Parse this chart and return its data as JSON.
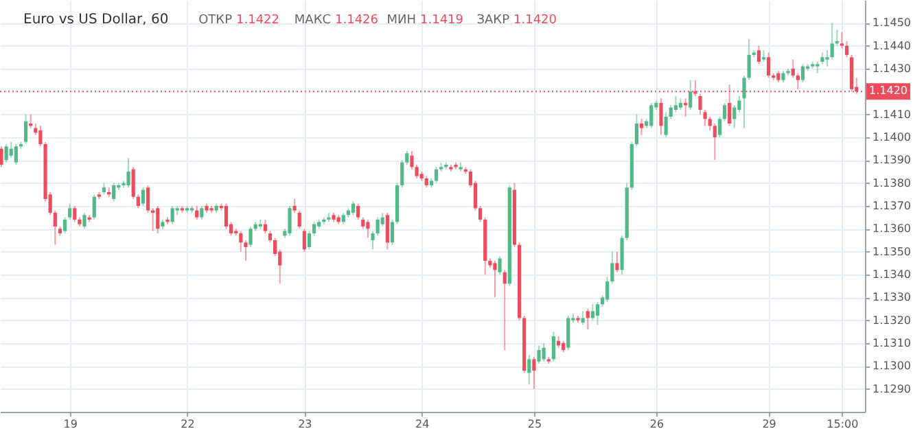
{
  "chart_data": {
    "type": "candlestick",
    "title": "Euro vs US Dollar, 60",
    "annotations": [
      "ОТКР 1.1422",
      "МАКС 1.1426",
      "МИН 1.1419",
      "ЗАКР 1.1420"
    ],
    "categories": [
      null,
      null,
      null,
      null,
      null,
      null,
      null,
      null,
      null,
      null,
      null,
      null,
      null,
      null,
      "19",
      null,
      null,
      null,
      null,
      null,
      null,
      null,
      null,
      null,
      null,
      null,
      null,
      null,
      null,
      null,
      null,
      null,
      null,
      null,
      null,
      null,
      null,
      null,
      "22",
      null,
      null,
      null,
      null,
      null,
      null,
      null,
      null,
      null,
      null,
      null,
      null,
      null,
      null,
      null,
      null,
      null,
      null,
      null,
      null,
      null,
      null,
      null,
      "23",
      null,
      null,
      null,
      null,
      null,
      null,
      null,
      null,
      null,
      null,
      null,
      null,
      null,
      null,
      null,
      null,
      null,
      null,
      null,
      null,
      null,
      null,
      null,
      "24",
      null,
      null,
      null,
      null,
      null,
      null,
      null,
      null,
      null,
      null,
      null,
      null,
      null,
      null,
      null,
      null,
      null,
      null,
      null,
      null,
      null,
      null,
      "25",
      null,
      null,
      null,
      null,
      null,
      null,
      null,
      null,
      null,
      null,
      null,
      null,
      null,
      null,
      null,
      null,
      null,
      null,
      null,
      null,
      null,
      null,
      null,
      null,
      "26",
      null,
      null,
      null,
      null,
      null,
      null,
      null,
      null,
      null,
      null,
      null,
      null,
      null,
      null,
      null,
      null,
      null,
      null,
      null,
      null,
      null,
      null,
      "29",
      null,
      null,
      null,
      null,
      null,
      null,
      null,
      null,
      null,
      null,
      null,
      null,
      null,
      null,
      "15:00",
      null,
      null,
      null
    ],
    "ohlc": [
      [
        1.1395,
        1.1396,
        1.1387,
        1.1388
      ],
      [
        1.139,
        1.1397,
        1.1389,
        1.1396
      ],
      [
        1.1392,
        1.1398,
        1.1391,
        1.1395
      ],
      [
        1.1389,
        1.1397,
        1.1388,
        1.1396
      ],
      [
        1.1396,
        1.1398,
        1.1395,
        1.1397
      ],
      [
        1.1398,
        1.141,
        1.1397,
        1.1407
      ],
      [
        1.1406,
        1.141,
        1.1404,
        1.1405
      ],
      [
        1.1404,
        1.1406,
        1.1401,
        1.1402
      ],
      [
        1.1403,
        1.1405,
        1.1396,
        1.1397
      ],
      [
        1.1397,
        1.1398,
        1.1372,
        1.1373
      ],
      [
        1.1375,
        1.1376,
        1.1366,
        1.1367
      ],
      [
        1.1367,
        1.1368,
        1.1353,
        1.1361
      ],
      [
        1.136,
        1.1361,
        1.1357,
        1.1358
      ],
      [
        1.1359,
        1.1365,
        1.1358,
        1.1364
      ],
      [
        1.1365,
        1.1371,
        1.1364,
        1.1369
      ],
      [
        1.1369,
        1.137,
        1.1363,
        1.1364
      ],
      [
        1.1364,
        1.1365,
        1.1361,
        1.1362
      ],
      [
        1.1361,
        1.1367,
        1.136,
        1.1366
      ],
      [
        1.1365,
        1.1366,
        1.1363,
        1.1364
      ],
      [
        1.1365,
        1.1375,
        1.1364,
        1.1374
      ],
      [
        1.1375,
        1.1376,
        1.1373,
        1.1374
      ],
      [
        1.1376,
        1.138,
        1.1375,
        1.1378
      ],
      [
        1.1376,
        1.1378,
        1.1374,
        1.1375
      ],
      [
        1.1373,
        1.138,
        1.1372,
        1.1379
      ],
      [
        1.1378,
        1.138,
        1.1377,
        1.1379
      ],
      [
        1.1379,
        1.1381,
        1.1378,
        1.138
      ],
      [
        1.1379,
        1.1391,
        1.1378,
        1.1385
      ],
      [
        1.1386,
        1.1387,
        1.1373,
        1.1374
      ],
      [
        1.1374,
        1.1375,
        1.1369,
        1.137
      ],
      [
        1.1371,
        1.1378,
        1.137,
        1.1377
      ],
      [
        1.1378,
        1.1379,
        1.1367,
        1.1368
      ],
      [
        1.1368,
        1.1369,
        1.1359,
        1.1367
      ],
      [
        1.1369,
        1.137,
        1.1358,
        1.136
      ],
      [
        1.1361,
        1.1364,
        1.136,
        1.1363
      ],
      [
        1.1364,
        1.1365,
        1.1362,
        1.1363
      ],
      [
        1.1363,
        1.137,
        1.1362,
        1.1369
      ],
      [
        1.1368,
        1.137,
        1.1366,
        1.1369
      ],
      [
        1.1369,
        1.137,
        1.1367,
        1.1368
      ],
      [
        1.1368,
        1.137,
        1.1367,
        1.1369
      ],
      [
        1.1368,
        1.137,
        1.1367,
        1.1369
      ],
      [
        1.1368,
        1.137,
        1.1364,
        1.1365
      ],
      [
        1.1365,
        1.137,
        1.1364,
        1.1369
      ],
      [
        1.137,
        1.1371,
        1.1367,
        1.1368
      ],
      [
        1.1369,
        1.137,
        1.1367,
        1.1368
      ],
      [
        1.1368,
        1.1371,
        1.1367,
        1.137
      ],
      [
        1.137,
        1.1371,
        1.1368,
        1.1369
      ],
      [
        1.137,
        1.1371,
        1.136,
        1.1361
      ],
      [
        1.1362,
        1.1363,
        1.1357,
        1.1358
      ],
      [
        1.1359,
        1.136,
        1.1357,
        1.1358
      ],
      [
        1.1358,
        1.1359,
        1.135,
        1.1354
      ],
      [
        1.1354,
        1.1355,
        1.1346,
        1.1352
      ],
      [
        1.1353,
        1.1361,
        1.1352,
        1.136
      ],
      [
        1.136,
        1.1363,
        1.1359,
        1.1362
      ],
      [
        1.1361,
        1.1364,
        1.136,
        1.1362
      ],
      [
        1.1362,
        1.1364,
        1.1358,
        1.1359
      ],
      [
        1.1358,
        1.1359,
        1.1354,
        1.1355
      ],
      [
        1.1355,
        1.1356,
        1.1348,
        1.1349
      ],
      [
        1.135,
        1.1351,
        1.1336,
        1.1344
      ],
      [
        1.1357,
        1.136,
        1.1356,
        1.1359
      ],
      [
        1.1358,
        1.137,
        1.1357,
        1.1369
      ],
      [
        1.137,
        1.1373,
        1.1367,
        1.1368
      ],
      [
        1.1367,
        1.1368,
        1.136,
        1.1361
      ],
      [
        1.1359,
        1.136,
        1.135,
        1.1351
      ],
      [
        1.1352,
        1.1359,
        1.1351,
        1.1358
      ],
      [
        1.1358,
        1.1363,
        1.1357,
        1.1362
      ],
      [
        1.1361,
        1.1364,
        1.136,
        1.1363
      ],
      [
        1.1363,
        1.1365,
        1.1362,
        1.1364
      ],
      [
        1.1364,
        1.1367,
        1.1363,
        1.1365
      ],
      [
        1.1366,
        1.1367,
        1.1363,
        1.1364
      ],
      [
        1.1365,
        1.1366,
        1.1362,
        1.1363
      ],
      [
        1.1363,
        1.1367,
        1.1362,
        1.1366
      ],
      [
        1.1366,
        1.1369,
        1.1365,
        1.1368
      ],
      [
        1.1367,
        1.1372,
        1.1366,
        1.1371
      ],
      [
        1.137,
        1.1371,
        1.1364,
        1.1365
      ],
      [
        1.1364,
        1.1365,
        1.136,
        1.1361
      ],
      [
        1.1363,
        1.1364,
        1.1356,
        1.136
      ],
      [
        1.1355,
        1.1359,
        1.1351,
        1.1358
      ],
      [
        1.1358,
        1.1365,
        1.1357,
        1.1364
      ],
      [
        1.1362,
        1.1367,
        1.1361,
        1.1365
      ],
      [
        1.1366,
        1.1367,
        1.1351,
        1.1354
      ],
      [
        1.1354,
        1.1364,
        1.1353,
        1.1363
      ],
      [
        1.1363,
        1.138,
        1.1362,
        1.1379
      ],
      [
        1.1379,
        1.139,
        1.1378,
        1.1389
      ],
      [
        1.1389,
        1.1394,
        1.1388,
        1.1393
      ],
      [
        1.1392,
        1.1394,
        1.1386,
        1.1387
      ],
      [
        1.1387,
        1.1388,
        1.1382,
        1.1383
      ],
      [
        1.1384,
        1.1385,
        1.1381,
        1.1382
      ],
      [
        1.1382,
        1.1383,
        1.1378,
        1.1379
      ],
      [
        1.1379,
        1.1382,
        1.1378,
        1.1381
      ],
      [
        1.1381,
        1.1387,
        1.138,
        1.1386
      ],
      [
        1.1386,
        1.1389,
        1.1385,
        1.1387
      ],
      [
        1.1387,
        1.1389,
        1.1386,
        1.1388
      ],
      [
        1.1387,
        1.1388,
        1.1385,
        1.1386
      ],
      [
        1.1388,
        1.1389,
        1.1386,
        1.1387
      ],
      [
        1.1386,
        1.1389,
        1.1385,
        1.1387
      ],
      [
        1.1386,
        1.1387,
        1.1384,
        1.1385
      ],
      [
        1.1385,
        1.1386,
        1.1378,
        1.1379
      ],
      [
        1.138,
        1.1381,
        1.1368,
        1.1369
      ],
      [
        1.1369,
        1.137,
        1.1363,
        1.1364
      ],
      [
        1.1364,
        1.1365,
        1.134,
        1.1346
      ],
      [
        1.1346,
        1.1347,
        1.1343,
        1.1344
      ],
      [
        1.1345,
        1.1346,
        1.133,
        1.1342
      ],
      [
        1.1341,
        1.1348,
        1.134,
        1.1347
      ],
      [
        1.1341,
        1.1342,
        1.1307,
        1.1336
      ],
      [
        1.1336,
        1.1379,
        1.1335,
        1.1378
      ],
      [
        1.1377,
        1.138,
        1.1352,
        1.1353
      ],
      [
        1.1353,
        1.1354,
        1.132,
        1.1321
      ],
      [
        1.1321,
        1.1322,
        1.1297,
        1.1298
      ],
      [
        1.1297,
        1.1305,
        1.1292,
        1.1303
      ],
      [
        1.1303,
        1.1304,
        1.129,
        1.1298
      ],
      [
        1.1302,
        1.1309,
        1.1301,
        1.1307
      ],
      [
        1.1303,
        1.131,
        1.1302,
        1.1308
      ],
      [
        1.1303,
        1.1304,
        1.1301,
        1.1302
      ],
      [
        1.1303,
        1.1315,
        1.1302,
        1.1313
      ],
      [
        1.1311,
        1.1313,
        1.1308,
        1.1309
      ],
      [
        1.131,
        1.1311,
        1.1306,
        1.1307
      ],
      [
        1.1308,
        1.1322,
        1.1307,
        1.1321
      ],
      [
        1.132,
        1.1323,
        1.1319,
        1.1321
      ],
      [
        1.1321,
        1.1322,
        1.1319,
        1.132
      ],
      [
        1.1319,
        1.1324,
        1.1318,
        1.1321
      ],
      [
        1.1324,
        1.1325,
        1.1316,
        1.1321
      ],
      [
        1.1321,
        1.1327,
        1.132,
        1.1324
      ],
      [
        1.1322,
        1.1328,
        1.1318,
        1.1327
      ],
      [
        1.1327,
        1.1331,
        1.1326,
        1.133
      ],
      [
        1.1329,
        1.1339,
        1.1328,
        1.1337
      ],
      [
        1.1337,
        1.135,
        1.1336,
        1.1345
      ],
      [
        1.1345,
        1.135,
        1.1341,
        1.1342
      ],
      [
        1.1342,
        1.1357,
        1.134,
        1.1356
      ],
      [
        1.1356,
        1.138,
        1.1355,
        1.1378
      ],
      [
        1.1378,
        1.1398,
        1.1377,
        1.1397
      ],
      [
        1.1397,
        1.141,
        1.1396,
        1.1406
      ],
      [
        1.1406,
        1.1408,
        1.1401,
        1.1404
      ],
      [
        1.1405,
        1.1408,
        1.1404,
        1.1407
      ],
      [
        1.1405,
        1.1415,
        1.1404,
        1.1414
      ],
      [
        1.1413,
        1.1416,
        1.1412,
        1.1415
      ],
      [
        1.1415,
        1.1417,
        1.1401,
        1.1405
      ],
      [
        1.1401,
        1.1411,
        1.14,
        1.1409
      ],
      [
        1.1409,
        1.1414,
        1.1408,
        1.1413
      ],
      [
        1.1412,
        1.1418,
        1.1411,
        1.1414
      ],
      [
        1.1413,
        1.1417,
        1.1412,
        1.1415
      ],
      [
        1.1415,
        1.1417,
        1.1409,
        1.1414
      ],
      [
        1.1413,
        1.1425,
        1.1412,
        1.142
      ],
      [
        1.142,
        1.1425,
        1.1418,
        1.1419
      ],
      [
        1.1418,
        1.1419,
        1.141,
        1.1412
      ],
      [
        1.1411,
        1.1412,
        1.1405,
        1.1408
      ],
      [
        1.1408,
        1.1409,
        1.1403,
        1.1405
      ],
      [
        1.1405,
        1.1406,
        1.139,
        1.14
      ],
      [
        1.1401,
        1.1409,
        1.14,
        1.1408
      ],
      [
        1.1408,
        1.1415,
        1.1407,
        1.1414
      ],
      [
        1.1415,
        1.1423,
        1.1405,
        1.1406
      ],
      [
        1.1408,
        1.1414,
        1.1404,
        1.1413
      ],
      [
        1.1412,
        1.1418,
        1.1411,
        1.1416
      ],
      [
        1.1417,
        1.1427,
        1.1404,
        1.1426
      ],
      [
        1.1426,
        1.1443,
        1.1425,
        1.1436
      ],
      [
        1.1436,
        1.1438,
        1.1435,
        1.1437
      ],
      [
        1.1438,
        1.144,
        1.1432,
        1.1433
      ],
      [
        1.1434,
        1.1438,
        1.1433,
        1.1435
      ],
      [
        1.1435,
        1.1437,
        1.1426,
        1.1427
      ],
      [
        1.1427,
        1.1428,
        1.1425,
        1.1426
      ],
      [
        1.1428,
        1.1429,
        1.1424,
        1.1425
      ],
      [
        1.1425,
        1.1429,
        1.1424,
        1.1428
      ],
      [
        1.1428,
        1.143,
        1.1427,
        1.1429
      ],
      [
        1.143,
        1.1434,
        1.1426,
        1.1427
      ],
      [
        1.1427,
        1.1428,
        1.1421,
        1.1425
      ],
      [
        1.1425,
        1.1432,
        1.1424,
        1.1431
      ],
      [
        1.143,
        1.1432,
        1.1429,
        1.1431
      ],
      [
        1.1431,
        1.1433,
        1.143,
        1.1432
      ],
      [
        1.1431,
        1.1433,
        1.1428,
        1.1432
      ],
      [
        1.1433,
        1.1437,
        1.1432,
        1.1435
      ],
      [
        1.1434,
        1.1438,
        1.1431,
        1.1435
      ],
      [
        1.1435,
        1.145,
        1.1434,
        1.1441
      ],
      [
        1.1441,
        1.1447,
        1.144,
        1.1442
      ],
      [
        1.1441,
        1.1446,
        1.1439,
        1.144
      ],
      [
        1.144,
        1.1442,
        1.1435,
        1.1436
      ],
      [
        1.1435,
        1.1436,
        1.142,
        1.1421
      ],
      [
        1.1422,
        1.1426,
        1.1419,
        1.142
      ]
    ],
    "colors": [
      "#eb4d5c",
      "#53b987",
      "#53b987",
      "#53b987",
      "#53b987",
      "#53b987",
      "#eb4d5c",
      "#eb4d5c",
      "#eb4d5c",
      "#eb4d5c",
      "#eb4d5c",
      "#eb4d5c",
      "#eb4d5c",
      "#53b987",
      "#53b987",
      "#eb4d5c",
      "#eb4d5c",
      "#53b987",
      "#eb4d5c",
      "#53b987",
      "#eb4d5c",
      "#53b987",
      "#eb4d5c",
      "#53b987",
      "#53b987",
      "#53b987",
      "#53b987",
      "#eb4d5c",
      "#eb4d5c",
      "#53b987",
      "#eb4d5c",
      "#eb4d5c",
      "#eb4d5c",
      "#53b987",
      "#eb4d5c",
      "#53b987",
      "#53b987",
      "#eb4d5c",
      "#53b987",
      "#53b987",
      "#eb4d5c",
      "#53b987",
      "#eb4d5c",
      "#eb4d5c",
      "#53b987",
      "#eb4d5c",
      "#eb4d5c",
      "#eb4d5c",
      "#eb4d5c",
      "#eb4d5c",
      "#eb4d5c",
      "#53b987",
      "#53b987",
      "#53b987",
      "#eb4d5c",
      "#eb4d5c",
      "#eb4d5c",
      "#eb4d5c",
      "#53b987",
      "#53b987",
      "#eb4d5c",
      "#eb4d5c",
      "#eb4d5c",
      "#53b987",
      "#53b987",
      "#53b987",
      "#53b987",
      "#53b987",
      "#eb4d5c",
      "#eb4d5c",
      "#53b987",
      "#53b987",
      "#53b987",
      "#eb4d5c",
      "#eb4d5c",
      "#eb4d5c",
      "#53b987",
      "#53b987",
      "#53b987",
      "#eb4d5c",
      "#53b987",
      "#53b987",
      "#53b987",
      "#53b987",
      "#eb4d5c",
      "#eb4d5c",
      "#eb4d5c",
      "#eb4d5c",
      "#53b987",
      "#53b987",
      "#53b987",
      "#53b987",
      "#eb4d5c",
      "#eb4d5c",
      "#53b987",
      "#eb4d5c",
      "#eb4d5c",
      "#eb4d5c",
      "#eb4d5c",
      "#eb4d5c",
      "#eb4d5c",
      "#eb4d5c",
      "#53b987",
      "#eb4d5c",
      "#53b987",
      "#eb4d5c",
      "#eb4d5c",
      "#eb4d5c",
      "#53b987",
      "#eb4d5c",
      "#53b987",
      "#53b987",
      "#eb4d5c",
      "#53b987",
      "#eb4d5c",
      "#eb4d5c",
      "#53b987",
      "#53b987",
      "#eb4d5c",
      "#53b987",
      "#eb4d5c",
      "#53b987",
      "#53b987",
      "#53b987",
      "#53b987",
      "#53b987",
      "#eb4d5c",
      "#53b987",
      "#53b987",
      "#53b987",
      "#53b987",
      "#eb4d5c",
      "#53b987",
      "#53b987",
      "#53b987",
      "#eb4d5c",
      "#53b987",
      "#53b987",
      "#53b987",
      "#53b987",
      "#eb4d5c",
      "#53b987",
      "#eb4d5c",
      "#eb4d5c",
      "#eb4d5c",
      "#eb4d5c",
      "#eb4d5c",
      "#53b987",
      "#53b987",
      "#eb4d5c",
      "#53b987",
      "#53b987",
      "#53b987",
      "#53b987",
      "#53b987",
      "#eb4d5c",
      "#53b987",
      "#eb4d5c",
      "#eb4d5c",
      "#eb4d5c",
      "#53b987",
      "#53b987",
      "#eb4d5c",
      "#eb4d5c",
      "#53b987",
      "#53b987",
      "#53b987",
      "#53b987",
      "#53b987",
      "#53b987",
      "#53b987",
      "#53b987",
      "#eb4d5c",
      "#eb4d5c",
      "#eb4d5c",
      "#eb4d5c"
    ],
    "ylim": [
      1.128,
      1.146
    ],
    "yticks": [
      {
        "value": 1.129,
        "label": "1.1290"
      },
      {
        "value": 1.13,
        "label": "1.1300"
      },
      {
        "value": 1.131,
        "label": "1.1310"
      },
      {
        "value": 1.132,
        "label": "1.1320"
      },
      {
        "value": 1.133,
        "label": "1.1330"
      },
      {
        "value": 1.134,
        "label": "1.1340"
      },
      {
        "value": 1.135,
        "label": "1.1350"
      },
      {
        "value": 1.136,
        "label": "1.1360"
      },
      {
        "value": 1.137,
        "label": "1.1370"
      },
      {
        "value": 1.138,
        "label": "1.1380"
      },
      {
        "value": 1.139,
        "label": "1.1390"
      },
      {
        "value": 1.14,
        "label": "1.1400"
      },
      {
        "value": 1.141,
        "label": "1.1410"
      },
      {
        "value": 1.143,
        "label": "1.1430"
      },
      {
        "value": 1.144,
        "label": "1.1440"
      },
      {
        "value": 1.145,
        "label": "1.1450"
      }
    ],
    "grid": true,
    "ref_lines": [
      {
        "axis": "y",
        "value": 1.142,
        "label": "1.1420",
        "color": "#eb4d5c",
        "line_style": "dotted"
      }
    ]
  }
}
